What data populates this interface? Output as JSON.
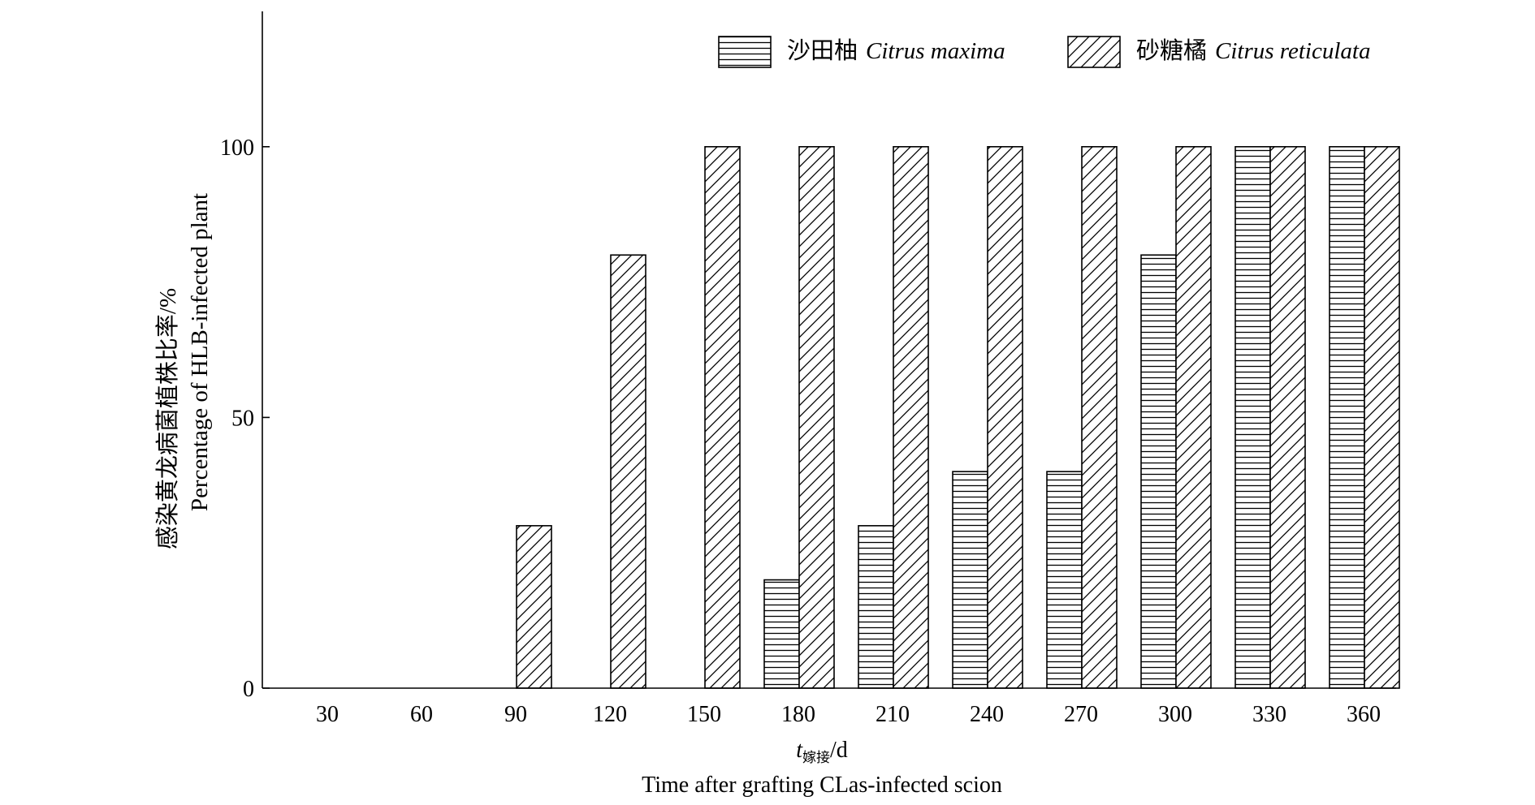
{
  "chart_data": {
    "type": "bar",
    "categories": [
      "30",
      "60",
      "90",
      "120",
      "150",
      "180",
      "210",
      "240",
      "270",
      "300",
      "330",
      "360"
    ],
    "series": [
      {
        "name_cn": "沙田柚",
        "name_latin": "Citrus maxima",
        "pattern": "horizontal-lines",
        "values": [
          0,
          0,
          0,
          0,
          0,
          20,
          30,
          40,
          40,
          80,
          100,
          100
        ]
      },
      {
        "name_cn": "砂糖橘",
        "name_latin": "Citrus reticulata",
        "pattern": "diagonal-hatch",
        "values": [
          0,
          0,
          30,
          80,
          100,
          100,
          100,
          100,
          100,
          100,
          100,
          100
        ]
      }
    ],
    "ylim": [
      0,
      125
    ],
    "yticks": [
      "0",
      "50",
      "100"
    ],
    "ylabel_cn": "感染黄龙病菌植株比率/%",
    "ylabel_en": "Percentage of HLB-infected plant",
    "xlabel_var": "t",
    "xlabel_sub": "嫁接",
    "xlabel_unit": "/d",
    "xlabel_en": "Time after grafting CLas-infected scion",
    "legend_position": "top-right",
    "grid": false
  }
}
